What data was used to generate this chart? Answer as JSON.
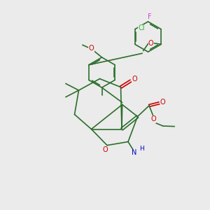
{
  "bg_color": "#ebebeb",
  "bond_color": "#2d6e2d",
  "o_color": "#cc0000",
  "n_color": "#0000cc",
  "cl_color": "#33aa33",
  "f_color": "#cc44cc",
  "lw": 1.2,
  "dlw": 1.2,
  "fs": 7.0,
  "xlim": [
    0,
    10
  ],
  "ylim": [
    0,
    10
  ]
}
